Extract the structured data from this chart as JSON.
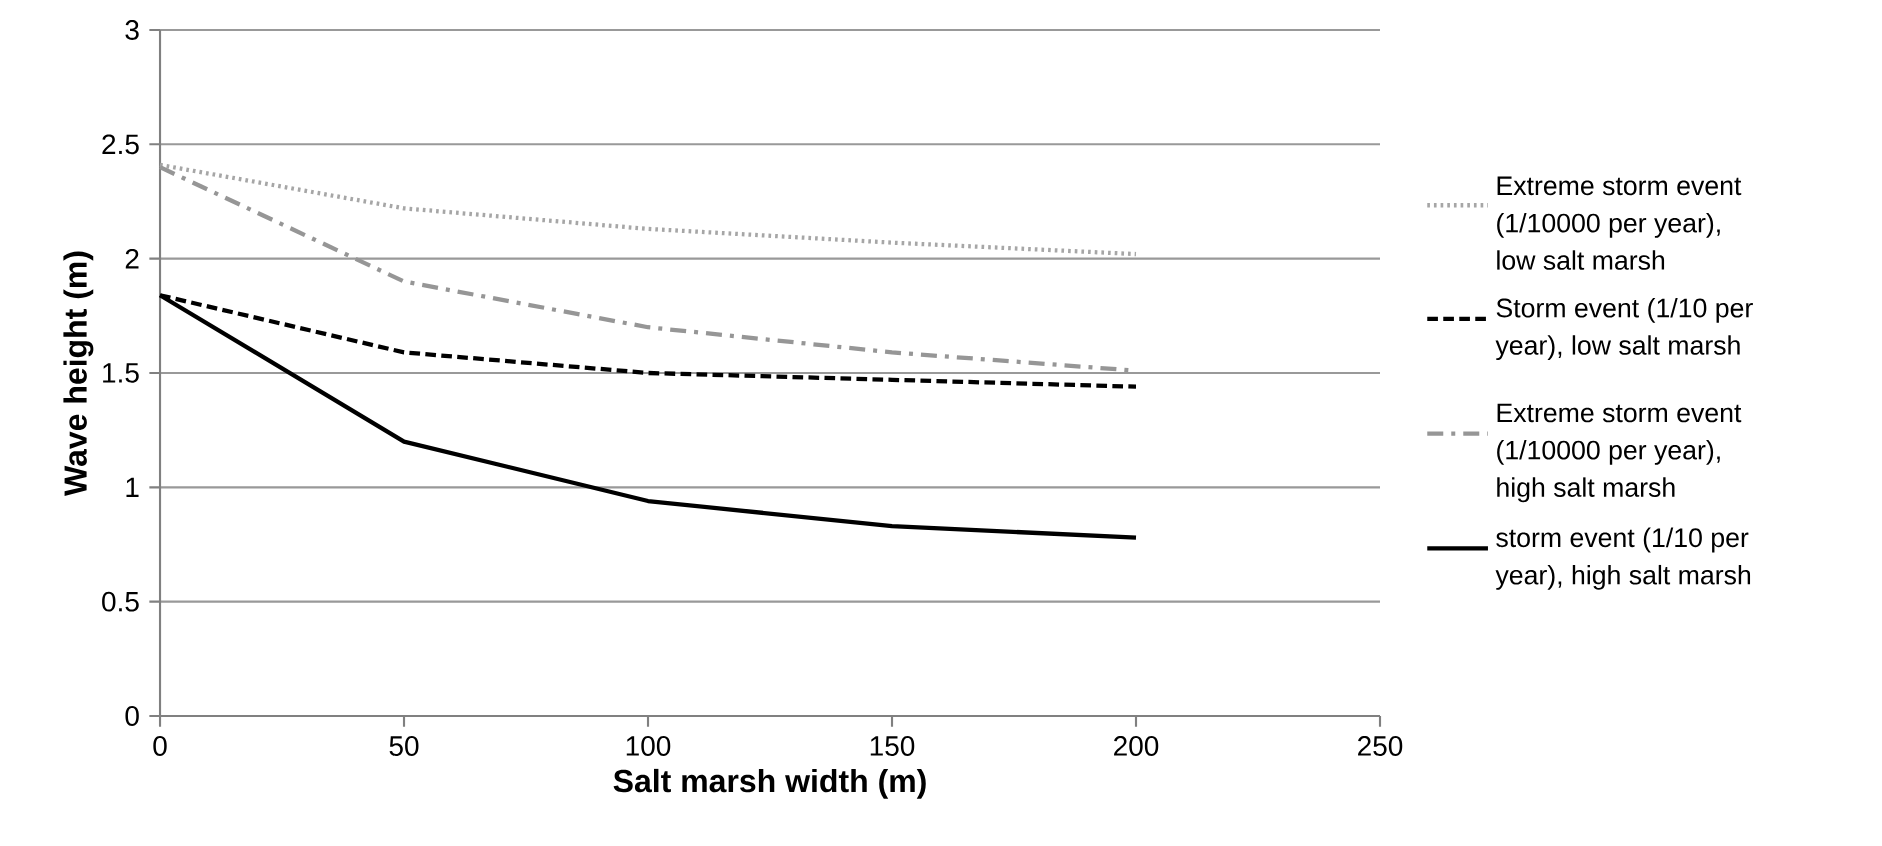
{
  "chart_data": {
    "type": "line",
    "xlabel": "Salt marsh width (m)",
    "ylabel": "Wave height (m)",
    "x": [
      0,
      50,
      100,
      150,
      200
    ],
    "xlim": [
      0,
      250
    ],
    "xticks": [
      0,
      50,
      100,
      150,
      200,
      250
    ],
    "ylim": [
      0,
      3
    ],
    "yticks": [
      0,
      0.5,
      1,
      1.5,
      2,
      2.5,
      3
    ],
    "grid": "y",
    "legend": "right",
    "marker": "none",
    "series": [
      {
        "name": "Extreme storm event (1/10000 per year), low salt marsh",
        "color": "#a6a6a6",
        "line_style": "dotted",
        "values": [
          2.41,
          2.22,
          2.13,
          2.07,
          2.02
        ]
      },
      {
        "name": "Storm event (1/10 per year), low salt marsh",
        "color": "#000000",
        "line_style": "dashed",
        "values": [
          1.84,
          1.59,
          1.5,
          1.47,
          1.44
        ]
      },
      {
        "name": "Extreme storm event (1/10000 per year), high salt marsh",
        "color": "#969696",
        "line_style": "dashdot",
        "values": [
          2.4,
          1.9,
          1.7,
          1.59,
          1.51
        ]
      },
      {
        "name": "storm event (1/10 per year), high salt marsh",
        "color": "#000000",
        "line_style": "solid",
        "values": [
          1.84,
          1.2,
          0.94,
          0.83,
          0.78
        ]
      }
    ]
  }
}
